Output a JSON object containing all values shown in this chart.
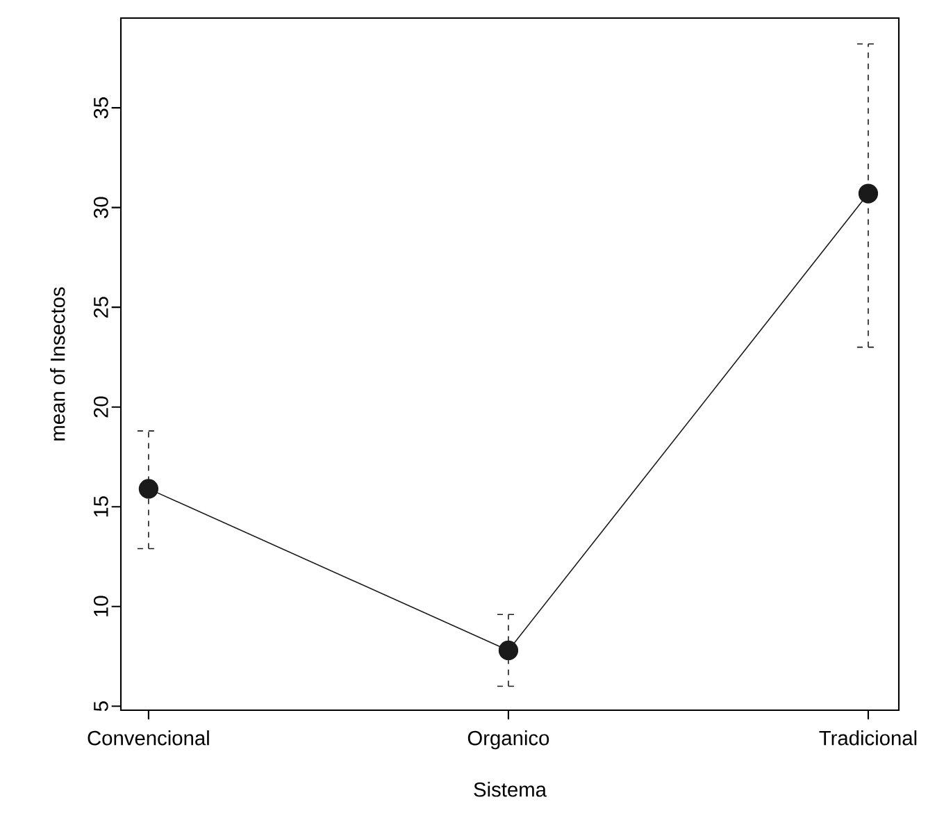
{
  "chart_data": {
    "type": "line",
    "xlabel": "Sistema",
    "ylabel": "mean of Insectos",
    "categories": [
      "Convencional",
      "Organico",
      "Tradicional"
    ],
    "values": [
      15.9,
      7.8,
      30.7
    ],
    "errors": [
      [
        12.9,
        18.8
      ],
      [
        6.0,
        9.6
      ],
      [
        23.0,
        38.2
      ]
    ],
    "color": "#1a1a1a",
    "marker": "circle",
    "line_style": "solid",
    "ylim": [
      4.8,
      39.5
    ],
    "yticks": [
      5,
      10,
      15,
      20,
      25,
      30,
      35
    ]
  }
}
